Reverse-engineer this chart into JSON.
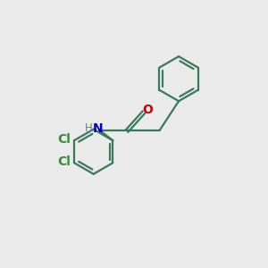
{
  "background_color": "#ebebeb",
  "bond_color": "#3a7a5a",
  "n_color": "#0000cc",
  "o_color": "#cc0000",
  "cl_color": "#3a8a3a",
  "h_color": "#5a8a7a",
  "line_width": 1.6,
  "font_size_atom": 10,
  "font_size_h": 8.5,
  "xlim": [
    0,
    10
  ],
  "ylim": [
    0,
    10
  ]
}
